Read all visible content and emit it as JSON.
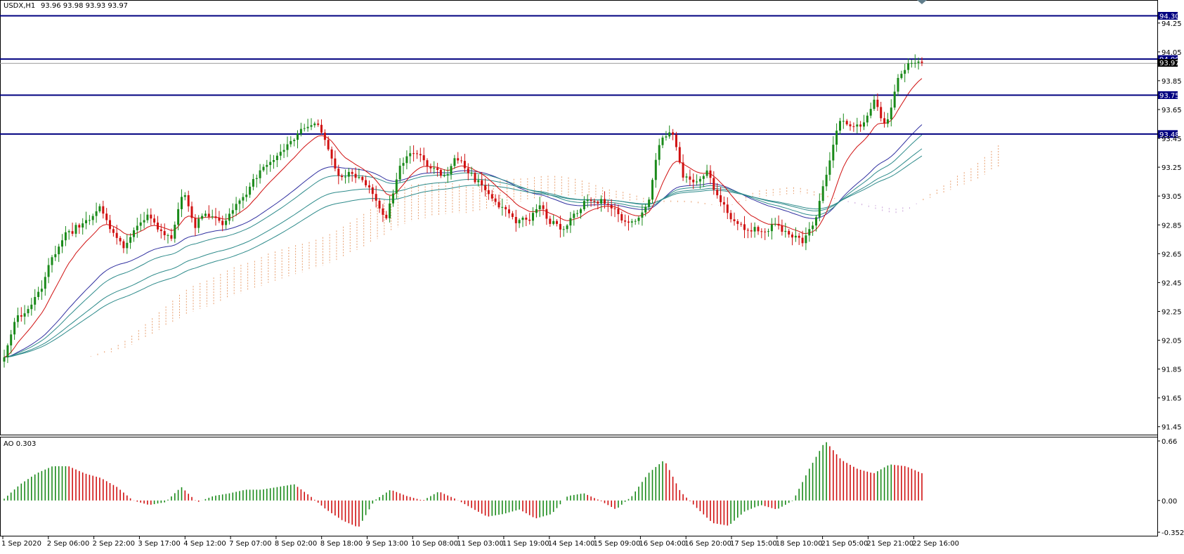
{
  "header": {
    "symbol": "USDX,H1",
    "ohlc": "93.96 93.98 93.93 93.97"
  },
  "colors": {
    "bull": "#1a8a1a",
    "bear": "#d01010",
    "level": "#000080",
    "ema_red": "#d01010",
    "ma_blue": "#3030a0",
    "ma_teal": "#2e8b8b",
    "cloud_bull": "#e8a070",
    "cloud_bear": "#c8a0d8"
  },
  "price_axis": {
    "ticks": [
      "94.25",
      "94.05",
      "93.85",
      "93.65",
      "93.45",
      "93.25",
      "93.05",
      "92.85",
      "92.65",
      "92.45",
      "92.25",
      "92.05",
      "91.85",
      "91.65",
      "91.45"
    ],
    "current_label": "93.97"
  },
  "levels": [
    {
      "value": 94.3,
      "label": "94.30"
    },
    {
      "value": 94.0,
      "label": "94.00"
    },
    {
      "value": 93.75,
      "label": "93.75"
    },
    {
      "value": 93.48,
      "label": "93.48"
    }
  ],
  "ao_panel": {
    "title": "AO 0.303",
    "ticks": [
      "0.66",
      "0.00",
      "-0.352"
    ]
  },
  "time_axis": {
    "labels": [
      "1 Sep 2020",
      "2 Sep 06:00",
      "2 Sep 22:00",
      "3 Sep 17:00",
      "4 Sep 12:00",
      "7 Sep 07:00",
      "8 Sep 02:00",
      "8 Sep 18:00",
      "9 Sep 13:00",
      "10 Sep 08:00",
      "11 Sep 03:00",
      "11 Sep 19:00",
      "14 Sep 14:00",
      "15 Sep 09:00",
      "16 Sep 04:00",
      "16 Sep 20:00",
      "17 Sep 15:00",
      "18 Sep 10:00",
      "21 Sep 05:00",
      "21 Sep 21:00",
      "22 Sep 16:00"
    ]
  },
  "chart_data": {
    "type": "candlestick",
    "symbol": "USDX",
    "timeframe": "H1",
    "ylim": [
      91.4,
      94.4
    ],
    "ao_ylim": [
      -0.352,
      0.66
    ],
    "close_anchors": [
      91.9,
      92.2,
      92.3,
      92.4,
      92.6,
      92.75,
      92.85,
      92.9,
      92.95,
      92.8,
      92.7,
      92.85,
      92.9,
      92.8,
      92.75,
      93.1,
      92.85,
      92.9,
      92.85,
      92.95,
      93.05,
      93.15,
      93.25,
      93.35,
      93.45,
      93.5,
      93.55,
      93.45,
      93.2,
      93.2,
      93.15,
      93.05,
      92.9,
      93.2,
      93.35,
      93.3,
      93.25,
      93.2,
      93.3,
      93.2,
      93.15,
      93.05,
      92.95,
      92.85,
      92.9,
      93.0,
      92.85,
      92.8,
      92.95,
      93.05,
      93.0,
      92.95,
      92.85,
      92.9,
      93.0,
      93.4,
      93.5,
      93.2,
      93.15,
      93.2,
      93.0,
      92.9,
      92.85,
      92.8,
      92.8,
      92.85,
      92.8,
      92.75,
      92.85,
      93.2,
      93.6,
      93.55,
      93.5,
      93.7,
      93.55,
      93.9,
      93.95,
      93.97
    ],
    "ao_anchors": [
      0.02,
      0.18,
      0.3,
      0.38,
      0.38,
      0.3,
      0.25,
      0.15,
      0.0,
      -0.05,
      -0.02,
      0.15,
      -0.02,
      0.05,
      0.08,
      0.12,
      0.12,
      0.15,
      0.18,
      0.05,
      -0.1,
      -0.22,
      -0.3,
      0.0,
      0.12,
      0.05,
      0.0,
      0.1,
      0.02,
      -0.08,
      -0.18,
      -0.15,
      -0.1,
      -0.2,
      -0.15,
      0.05,
      0.08,
      0.0,
      -0.1,
      0.05,
      0.3,
      0.45,
      0.1,
      -0.08,
      -0.25,
      -0.28,
      -0.12,
      -0.05,
      -0.1,
      0.0,
      0.35,
      0.66,
      0.45,
      0.35,
      0.3,
      0.4,
      0.38,
      0.303
    ]
  }
}
